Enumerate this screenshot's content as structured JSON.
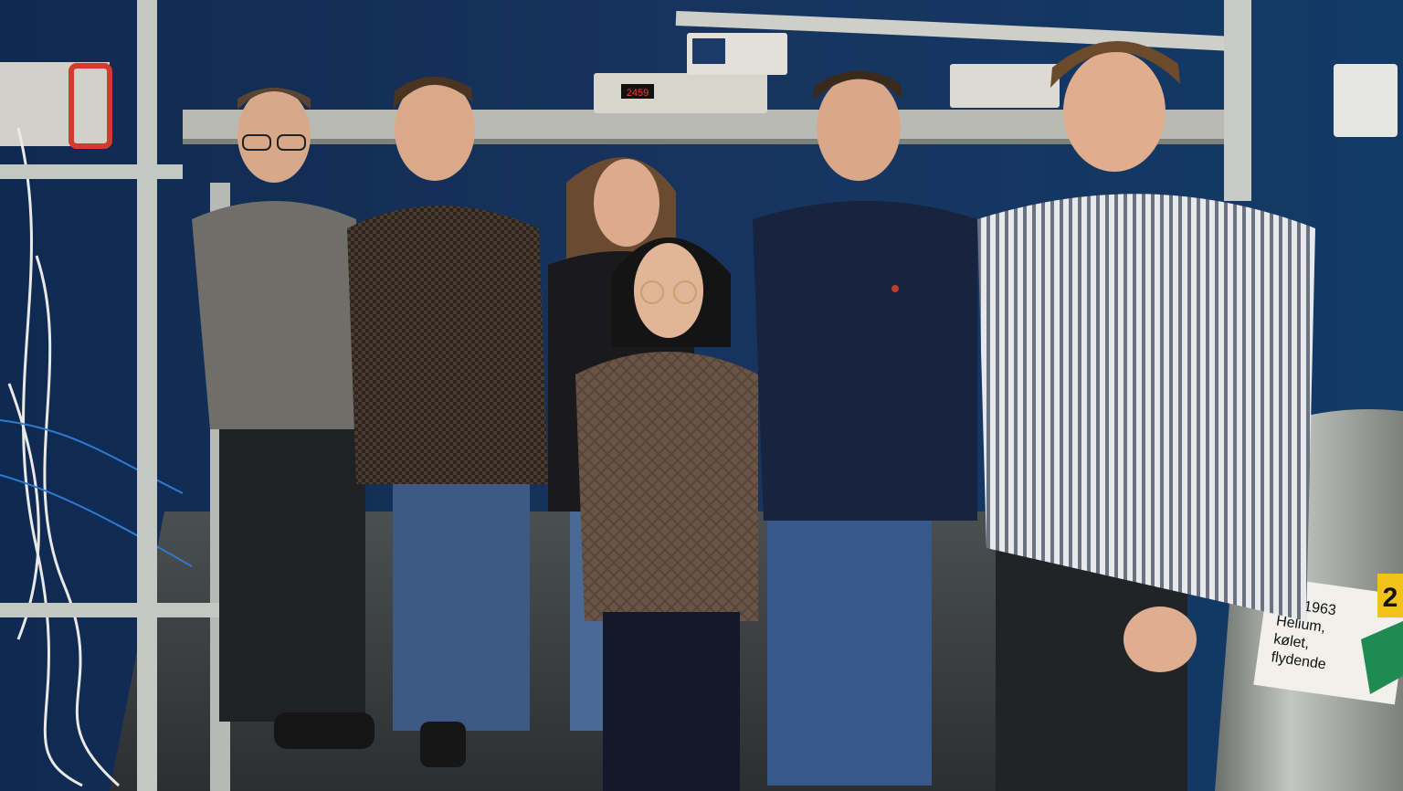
{
  "scene": {
    "colors": {
      "wall": "#14305a",
      "wall_dark": "#0b1d3a",
      "floor": "#3a3f44",
      "shelf": "#c9cbc8",
      "equipment": "#d9d6cc",
      "tank": "#9a9c99"
    }
  },
  "equipment": {
    "display_readout": "2459"
  },
  "tank_label": {
    "line1": "UN 1963",
    "line2": "Helium,",
    "line3": "kølet,",
    "line4": "flydende",
    "number": "2"
  }
}
